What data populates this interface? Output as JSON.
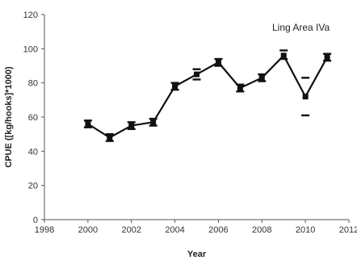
{
  "chart_data": {
    "type": "line",
    "title": "",
    "annotation": "Ling Area IVa",
    "xlabel": "Year",
    "ylabel": "CPUE ([kg/hooks]*1000)",
    "xlim": [
      1998,
      2012
    ],
    "ylim": [
      0,
      120
    ],
    "x_ticks": [
      "1998",
      "2000",
      "2002",
      "2004",
      "2006",
      "2008",
      "2010",
      "2012"
    ],
    "y_ticks": [
      "0",
      "20",
      "40",
      "60",
      "80",
      "100",
      "120"
    ],
    "grid": false,
    "legend": "none",
    "colors": {
      "line": "#111111",
      "axis": "#555555",
      "marker": "#111111"
    },
    "series": [
      {
        "x": [
          2000,
          2001,
          2002,
          2003,
          2004,
          2005,
          2006,
          2007,
          2008,
          2009,
          2010,
          2011
        ],
        "values": [
          56,
          48,
          55,
          57,
          78,
          85,
          92,
          77,
          83,
          96,
          72,
          95
        ],
        "error_low": [
          54,
          46,
          53,
          55,
          76,
          82,
          90,
          75,
          81,
          94,
          61,
          93
        ],
        "error_high": [
          58,
          50,
          57,
          59,
          80,
          88,
          94,
          79,
          85,
          99,
          83,
          97
        ]
      }
    ]
  }
}
